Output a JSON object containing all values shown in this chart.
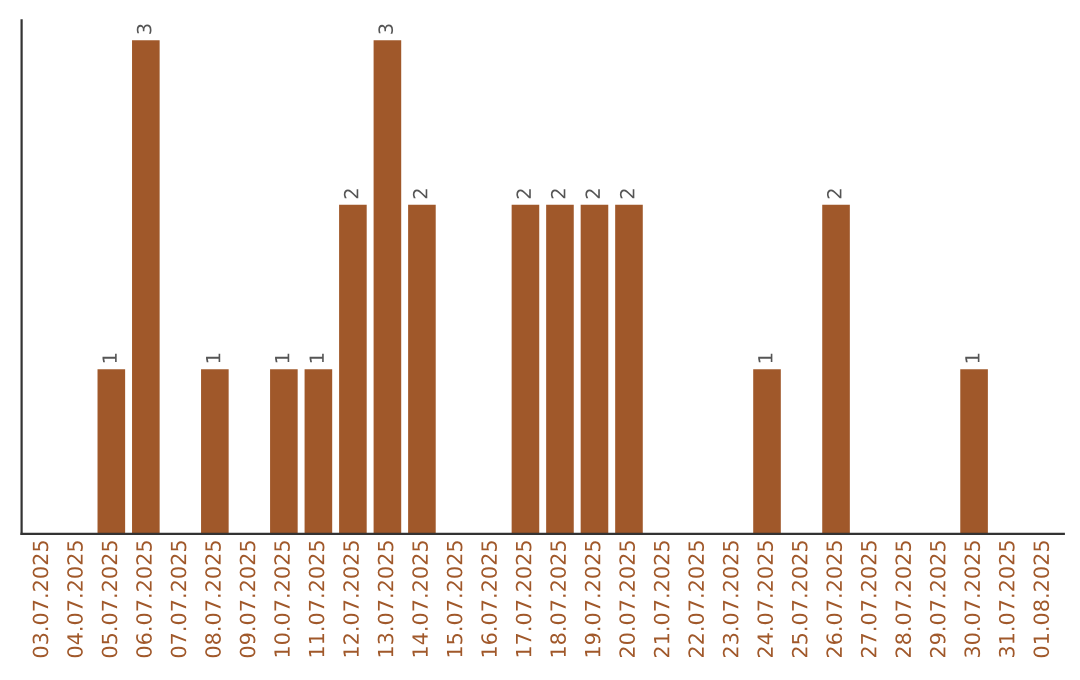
{
  "chart_data": {
    "type": "bar",
    "categories": [
      "03.07.2025",
      "04.07.2025",
      "05.07.2025",
      "06.07.2025",
      "07.07.2025",
      "08.07.2025",
      "09.07.2025",
      "10.07.2025",
      "11.07.2025",
      "12.07.2025",
      "13.07.2025",
      "14.07.2025",
      "15.07.2025",
      "16.07.2025",
      "17.07.2025",
      "18.07.2025",
      "19.07.2025",
      "20.07.2025",
      "21.07.2025",
      "22.07.2025",
      "23.07.2025",
      "24.07.2025",
      "25.07.2025",
      "26.07.2025",
      "27.07.2025",
      "28.07.2025",
      "29.07.2025",
      "30.07.2025",
      "31.07.2025",
      "01.08.2025"
    ],
    "values": [
      0,
      0,
      1,
      3,
      0,
      1,
      0,
      1,
      1,
      2,
      3,
      2,
      0,
      0,
      2,
      2,
      2,
      2,
      0,
      0,
      0,
      1,
      0,
      2,
      0,
      0,
      0,
      1,
      0,
      0
    ],
    "value_labels": [
      null,
      null,
      "1",
      "3",
      null,
      "1",
      null,
      "1",
      "1",
      "2",
      "3",
      "2",
      null,
      null,
      "2",
      "2",
      "2",
      "2",
      null,
      null,
      null,
      "1",
      null,
      "2",
      null,
      null,
      null,
      "1",
      null,
      null
    ],
    "color": "#a0582a",
    "tick_labels": "x",
    "grid": false,
    "legend": false
  }
}
